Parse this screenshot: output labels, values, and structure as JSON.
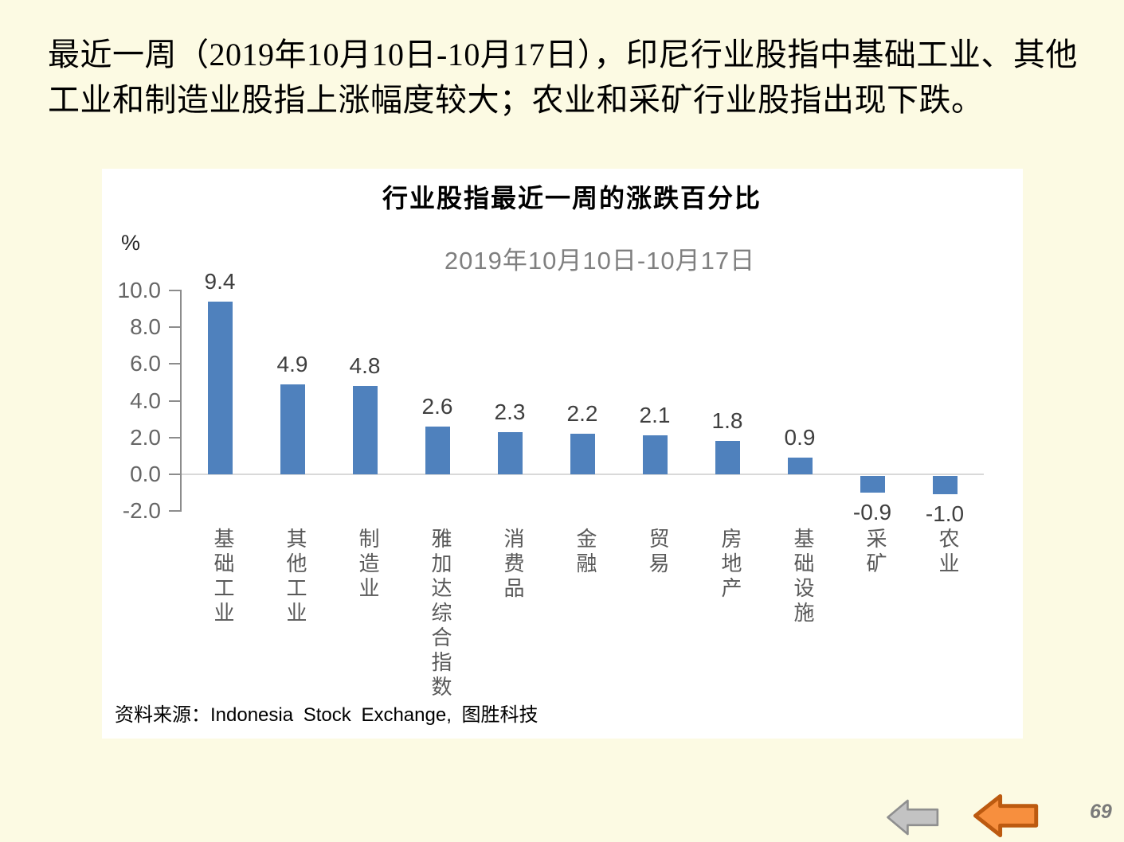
{
  "slide": {
    "title": "最近一周（2019年10月10日-10月17日），印尼行业股指中基础工业、其他工业和制造业股指上涨幅度较大；农业和采矿行业股指出现下跌。"
  },
  "chart": {
    "title": "行业股指最近一周的涨跌百分比",
    "subtitle": "2019年10月10日-10月17日",
    "unit_label": "%",
    "source": "资料来源：Indonesia Stock Exchange, 图胜科技"
  },
  "chart_data": {
    "type": "bar",
    "title": "行业股指最近一周的涨跌百分比",
    "subtitle": "2019年10月10日-10月17日",
    "ylabel": "%",
    "categories": [
      "基础工业",
      "其他工业",
      "制造业",
      "雅加达综合指数",
      "消费品",
      "金融",
      "贸易",
      "房地产",
      "基础设施",
      "采矿",
      "农业"
    ],
    "values": [
      9.4,
      4.9,
      4.8,
      2.6,
      2.3,
      2.2,
      2.1,
      1.8,
      0.9,
      -0.9,
      -1.0
    ],
    "yticks": [
      10.0,
      8.0,
      6.0,
      4.0,
      2.0,
      0.0,
      -2.0
    ],
    "ylim": [
      -2.0,
      10.0
    ],
    "bar_color": "#4F81BD",
    "grid": false,
    "legend": false,
    "data_labels": true,
    "source": "资料来源：Indonesia Stock Exchange, 图胜科技"
  },
  "nav": {
    "page_number": "69",
    "gray_arrow_fill": "#C3C3C3",
    "gray_arrow_stroke": "#8F8F8F",
    "orange_arrow_fill": "#F78F3E",
    "orange_arrow_stroke": "#BC5A10"
  }
}
